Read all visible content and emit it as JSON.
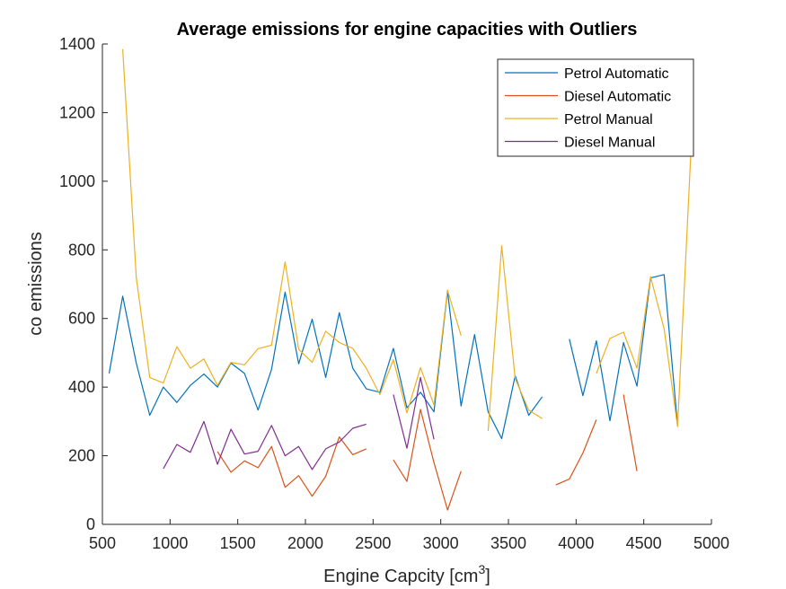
{
  "chart_data": {
    "type": "line",
    "title": "Average emissions for engine capacities with Outliers",
    "xlabel": "Engine Capcity [cm",
    "xlabel_superscript": "3",
    "xlabel_suffix": "]",
    "ylabel": "co emissions",
    "xlim": [
      500,
      5000
    ],
    "ylim": [
      0,
      1400
    ],
    "xticks": [
      500,
      1000,
      1500,
      2000,
      2500,
      3000,
      3500,
      4000,
      4500,
      5000
    ],
    "yticks": [
      0,
      200,
      400,
      600,
      800,
      1000,
      1200,
      1400
    ],
    "grid": false,
    "legend_position": "top-right",
    "series": [
      {
        "name": "Petrol Automatic",
        "color": "#0072BD",
        "segments": [
          [
            [
              550,
              440
            ],
            [
              650,
              665
            ],
            [
              750,
              470
            ],
            [
              850,
              318
            ],
            [
              950,
              400
            ],
            [
              1050,
              355
            ],
            [
              1150,
              405
            ],
            [
              1250,
              438
            ],
            [
              1350,
              400
            ],
            [
              1450,
              470
            ],
            [
              1550,
              440
            ],
            [
              1650,
              333
            ],
            [
              1750,
              452
            ],
            [
              1850,
              677
            ],
            [
              1950,
              468
            ],
            [
              2050,
              598
            ],
            [
              2150,
              428
            ],
            [
              2250,
              617
            ],
            [
              2350,
              455
            ],
            [
              2450,
              395
            ],
            [
              2550,
              385
            ],
            [
              2650,
              513
            ],
            [
              2750,
              340
            ],
            [
              2850,
              385
            ],
            [
              2950,
              328
            ],
            [
              3050,
              680
            ],
            [
              3150,
              345
            ],
            [
              3250,
              553
            ],
            [
              3350,
              328
            ],
            [
              3450,
              250
            ],
            [
              3550,
              433
            ],
            [
              3650,
              318
            ],
            [
              3750,
              372
            ]
          ],
          [
            [
              3950,
              540
            ],
            [
              4050,
              375
            ],
            [
              4150,
              535
            ],
            [
              4250,
              302
            ],
            [
              4350,
              530
            ],
            [
              4450,
              403
            ],
            [
              4550,
              718
            ],
            [
              4650,
              728
            ],
            [
              4750,
              288
            ]
          ]
        ]
      },
      {
        "name": "Diesel Automatic",
        "color": "#D95319",
        "segments": [
          [
            [
              1350,
              212
            ],
            [
              1450,
              152
            ],
            [
              1550,
              185
            ],
            [
              1650,
              165
            ],
            [
              1750,
              227
            ],
            [
              1850,
              108
            ],
            [
              1950,
              142
            ],
            [
              2050,
              82
            ],
            [
              2150,
              140
            ],
            [
              2250,
              255
            ],
            [
              2350,
              203
            ],
            [
              2450,
              220
            ]
          ],
          [
            [
              2650,
              188
            ],
            [
              2750,
              125
            ],
            [
              2850,
              335
            ],
            [
              2950,
              180
            ],
            [
              3050,
              42
            ],
            [
              3150,
              155
            ]
          ],
          [
            [
              3850,
              115
            ],
            [
              3950,
              132
            ],
            [
              4050,
              208
            ],
            [
              4150,
              305
            ]
          ],
          [
            [
              4350,
              378
            ],
            [
              4450,
              155
            ]
          ]
        ]
      },
      {
        "name": "Petrol Manual",
        "color": "#EDB120",
        "segments": [
          [
            [
              650,
              1385
            ],
            [
              750,
              720
            ],
            [
              850,
              428
            ],
            [
              950,
              412
            ],
            [
              1050,
              518
            ],
            [
              1150,
              455
            ],
            [
              1250,
              482
            ],
            [
              1350,
              405
            ],
            [
              1450,
              472
            ],
            [
              1550,
              465
            ],
            [
              1650,
              512
            ],
            [
              1750,
              522
            ],
            [
              1850,
              765
            ],
            [
              1950,
              510
            ],
            [
              2050,
              472
            ],
            [
              2150,
              563
            ],
            [
              2250,
              530
            ],
            [
              2350,
              513
            ],
            [
              2450,
              455
            ],
            [
              2550,
              378
            ],
            [
              2650,
              480
            ],
            [
              2750,
              325
            ],
            [
              2850,
              457
            ],
            [
              2950,
              348
            ],
            [
              3050,
              683
            ],
            [
              3150,
              550
            ]
          ],
          [
            [
              3350,
              272
            ],
            [
              3450,
              812
            ],
            [
              3550,
              425
            ],
            [
              3650,
              333
            ],
            [
              3750,
              308
            ]
          ],
          [
            [
              4150,
              440
            ],
            [
              4250,
              542
            ],
            [
              4350,
              560
            ],
            [
              4450,
              455
            ],
            [
              4550,
              722
            ],
            [
              4650,
              570
            ],
            [
              4750,
              285
            ],
            [
              4850,
              1100
            ]
          ]
        ]
      },
      {
        "name": "Diesel Manual",
        "color": "#7E2F8E",
        "segments": [
          [
            [
              950,
              162
            ],
            [
              1050,
              233
            ],
            [
              1150,
              210
            ],
            [
              1250,
              300
            ],
            [
              1350,
              175
            ],
            [
              1450,
              277
            ],
            [
              1550,
              205
            ],
            [
              1650,
              213
            ],
            [
              1750,
              288
            ],
            [
              1850,
              200
            ],
            [
              1950,
              227
            ],
            [
              2050,
              160
            ],
            [
              2150,
              220
            ],
            [
              2250,
              240
            ],
            [
              2350,
              280
            ],
            [
              2450,
              292
            ]
          ],
          [
            [
              2650,
              378
            ],
            [
              2750,
              222
            ],
            [
              2850,
              428
            ],
            [
              2950,
              248
            ]
          ]
        ]
      }
    ]
  }
}
